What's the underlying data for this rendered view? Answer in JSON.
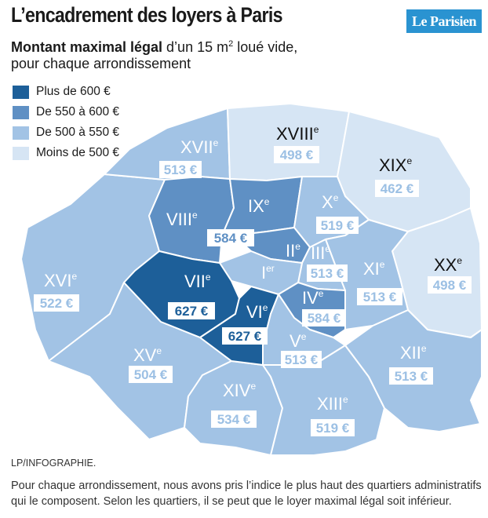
{
  "header": {
    "title": "L’encadrement des loyers à Paris",
    "logo_text": "Le Parisien",
    "subtitle_bold": "Montant maximal légal",
    "subtitle_rest_line1": " d’un 15 m",
    "subtitle_sup": "2",
    "subtitle_rest_line1_end": " loué vide,",
    "subtitle_line2": "pour chaque arrondissement"
  },
  "legend": [
    {
      "label": "Plus de 600 €",
      "color": "#1d5f99"
    },
    {
      "label": "De 550 à 600 €",
      "color": "#5f90c4"
    },
    {
      "label": "De 500 à 550 €",
      "color": "#a2c3e5"
    },
    {
      "label": "Moins de 500 €",
      "color": "#d6e5f4"
    }
  ],
  "arrondissements": [
    {
      "roman": "I",
      "suffix": "er",
      "price": null
    },
    {
      "roman": "II",
      "suffix": "e",
      "price": null
    },
    {
      "roman": "III",
      "suffix": "e",
      "price": "513 €"
    },
    {
      "roman": "IV",
      "suffix": "e",
      "price": "584 €"
    },
    {
      "roman": "V",
      "suffix": "e",
      "price": "513 €"
    },
    {
      "roman": "VI",
      "suffix": "e",
      "price": "627 €"
    },
    {
      "roman": "VII",
      "suffix": "e",
      "price": "627 €"
    },
    {
      "roman": "VIII",
      "suffix": "e",
      "price": null
    },
    {
      "roman": "IX",
      "suffix": "e",
      "price": null
    },
    {
      "roman": "X",
      "suffix": "e",
      "price": "519 €"
    },
    {
      "roman": "XI",
      "suffix": "e",
      "price": "513 €"
    },
    {
      "roman": "XII",
      "suffix": "e",
      "price": "513 €"
    },
    {
      "roman": "XIII",
      "suffix": "e",
      "price": "519 €"
    },
    {
      "roman": "XIV",
      "suffix": "e",
      "price": "534 €"
    },
    {
      "roman": "XV",
      "suffix": "e",
      "price": "504 €"
    },
    {
      "roman": "XVI",
      "suffix": "e",
      "price": "522 €"
    },
    {
      "roman": "XVII",
      "suffix": "e",
      "price": "513 €"
    },
    {
      "roman": "XVIII",
      "suffix": "e",
      "price": "498 €"
    },
    {
      "roman": "XIX",
      "suffix": "e",
      "price": "462 €"
    },
    {
      "roman": "XX",
      "suffix": "e",
      "price": "498 €"
    }
  ],
  "shared_price_8_9": "584 €",
  "footer": {
    "credit": "LP/INFOGRAPHIE.",
    "note": "Pour chaque arrondissement, nous avons pris l’indice le plus haut des quartiers administratifs qui le composent. Selon les quartiers, il se peut que le loyer maximal légal soit inférieur."
  }
}
